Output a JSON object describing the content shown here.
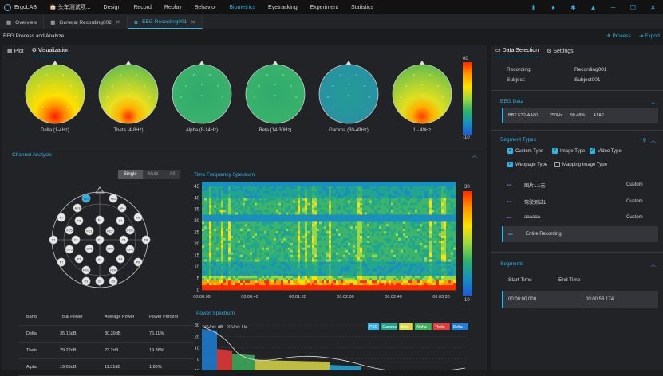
{
  "menubar": {
    "app": "ErgoLAB",
    "project": "头车测试项...",
    "items": [
      "Design",
      "Record",
      "Replay",
      "Behavior",
      "Biometrics",
      "Eyetracking",
      "Experiment",
      "Statistics"
    ],
    "active": "Biometrics"
  },
  "tabs": [
    {
      "label": "Overview"
    },
    {
      "label": "General Recording002"
    },
    {
      "label": "EEG Recording001"
    }
  ],
  "titlebar": {
    "title": "EEG Process and Analyze",
    "process": "Process",
    "export": "Export"
  },
  "left": {
    "tab_plot": "Plot",
    "tab_vis": "Visualization"
  },
  "topomaps": [
    {
      "label": "Delta (1-4Hz)"
    },
    {
      "label": "Theta (4-8Hz)"
    },
    {
      "label": "Alpha (8-14Hz)"
    },
    {
      "label": "Beta (14-30Hz)"
    },
    {
      "label": "Gamma (30-49Hz)"
    },
    {
      "label": "1 - 49Hz"
    }
  ],
  "colorbar": {
    "max": "60",
    "min": "-10"
  },
  "channel_analysis": {
    "title": "Channel Analysis",
    "modes": [
      "Single",
      "Multi",
      "All"
    ],
    "active_mode": "Single"
  },
  "electrodes": [
    "Fp1",
    "Fp2",
    "AF3",
    "AF4",
    "F7",
    "F3",
    "Fz",
    "F4",
    "F8",
    "FC5",
    "FC1",
    "FC2",
    "FC6",
    "T7",
    "C3",
    "Cz",
    "C4",
    "T8",
    "CP5",
    "CP1",
    "CP2",
    "CP6",
    "P7",
    "P3",
    "Pz",
    "P4",
    "P8",
    "PO3",
    "PO4",
    "O1",
    "Oz",
    "O2"
  ],
  "tfs": {
    "title": "Time Frequency Spectrum",
    "yticks": [
      "45",
      "40",
      "35",
      "30",
      "25",
      "20",
      "15",
      "10",
      "5",
      "0"
    ],
    "xticks": [
      "00:00:00",
      "00:00:40",
      "00:01:20",
      "00:02:00",
      "00:02:40",
      "00:03:20"
    ],
    "cmax": "30",
    "cmin": "-10"
  },
  "band_table": {
    "headers": [
      "Band",
      "Total Power",
      "Average Power",
      "Power Percent"
    ],
    "rows": [
      [
        "Delta",
        "35.16dB",
        "30.39dB",
        "76.11%"
      ],
      [
        "Theta",
        "29.22dB",
        "23.2dB",
        "19.38%"
      ],
      [
        "Alpha",
        "19.09dB",
        "11.31dB",
        "1.80%"
      ]
    ]
  },
  "power_spectrum": {
    "title": "Power Spectrum",
    "ylabel": "Y Unit: dB",
    "xunit": "X Unit: Hz",
    "yticks": [
      "30",
      "20",
      "10",
      "0",
      "-10"
    ],
    "legend": [
      "PSD",
      "Gamma",
      "Beta",
      "Alpha",
      "Theta",
      "Delta"
    ]
  },
  "right": {
    "tab_data": "Data Selection",
    "tab_settings": "Settings",
    "recording_label": "Recording:",
    "recording": "Recording001",
    "subject_label": "Subject:",
    "subject": "Subject001"
  },
  "eeg_data": {
    "title": "EEG Data",
    "device": "BBT E32-AA80...",
    "rate": "250Hz",
    "pct": "99.48%",
    "ref": "A1A2"
  },
  "segment_types": {
    "title": "Segment Types",
    "options": [
      {
        "label": "Custom Type",
        "checked": true
      },
      {
        "label": "Image Type",
        "checked": true
      },
      {
        "label": "Video Type",
        "checked": true
      },
      {
        "label": "Webpage Type",
        "checked": true
      },
      {
        "label": "Mapping Image Type",
        "checked": false
      }
    ]
  },
  "segments": [
    {
      "name": "图片1.1无",
      "type": "Custom"
    },
    {
      "name": "驾驶测试1",
      "type": "Custom"
    },
    {
      "name": "aaaaaa",
      "type": "Custom"
    },
    {
      "name": "Entire Recording",
      "type": ""
    }
  ],
  "segments_panel": {
    "title": "Segments",
    "start_label": "Start Time",
    "end_label": "End Time",
    "start": "00:00:00.000",
    "end": "00:00:58.174"
  },
  "colors": {
    "accent": "#2db5e8",
    "bg": "#1b1c1e",
    "panel": "#222326"
  }
}
